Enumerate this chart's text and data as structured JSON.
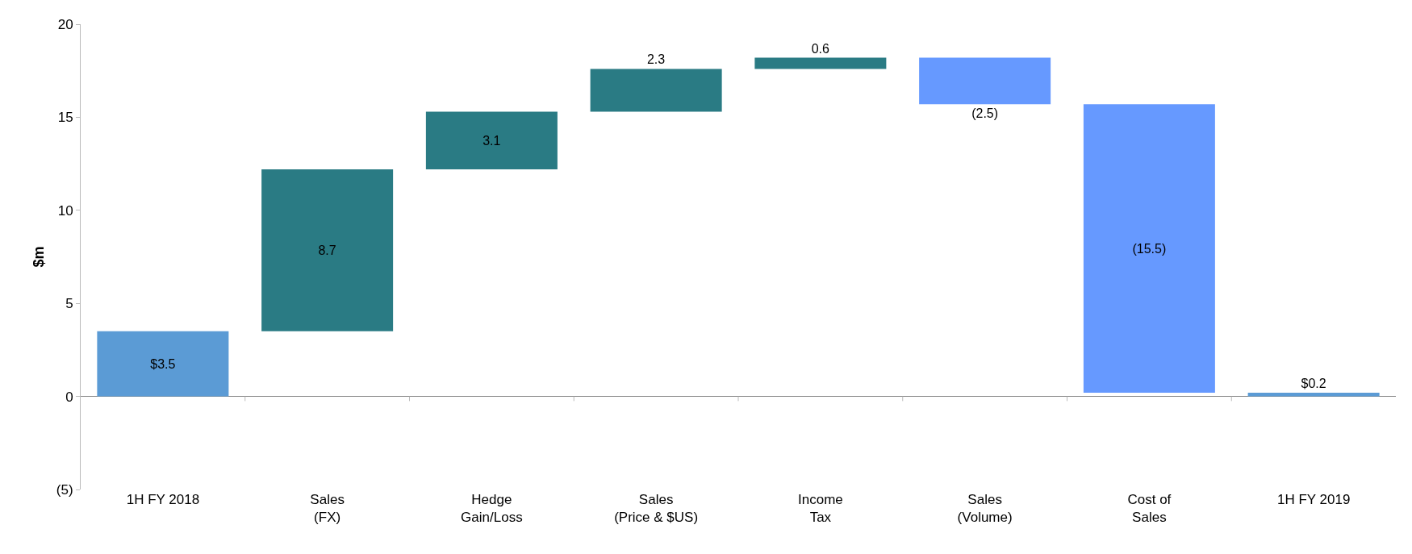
{
  "chart_data": {
    "type": "bar",
    "ylabel": "$m",
    "categories": [
      "1H FY 2018",
      "Sales\n(FX)",
      "Hedge\nGain/Loss",
      "Sales\n(Price & $US)",
      "Income\nTax",
      "Sales\n(Volume)",
      "Cost of\nSales",
      "1H FY 2019"
    ],
    "values": [
      3.5,
      8.7,
      3.1,
      2.3,
      0.6,
      -2.5,
      -15.5,
      0.2
    ],
    "base": [
      0,
      3.5,
      12.2,
      15.3,
      17.6,
      18.2,
      15.7,
      0
    ],
    "colors": [
      "#5b9bd5",
      "#2a7b84",
      "#2a7b84",
      "#2a7b84",
      "#2a7b84",
      "#6699ff",
      "#6699ff",
      "#5b9bd5"
    ],
    "value_labels": [
      "$3.5",
      "8.7",
      "3.1",
      "2.3",
      "0.6",
      "(2.5)",
      "(15.5)",
      "$0.2"
    ],
    "ylim": [
      -5,
      20
    ],
    "yticks": [
      {
        "value": -5,
        "label": "(5)"
      },
      0,
      5,
      10,
      15,
      20
    ]
  }
}
